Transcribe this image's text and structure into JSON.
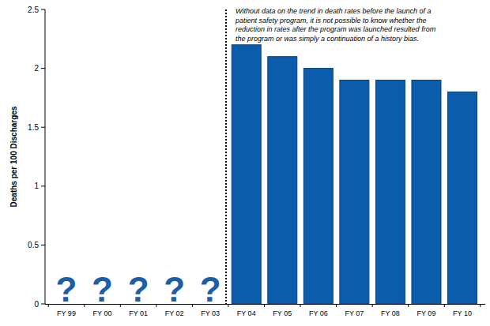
{
  "chart_data": {
    "type": "bar",
    "y_label": "Deaths per 100 Discharges",
    "categories": [
      "FY 99",
      "FY 00",
      "FY 01",
      "FY 02",
      "FY 03",
      "FY 04",
      "FY 05",
      "FY 06",
      "FY 07",
      "FY 08",
      "FY 09",
      "FY 10"
    ],
    "values": [
      null,
      null,
      null,
      null,
      null,
      2.2,
      2.1,
      2.0,
      1.9,
      1.9,
      1.9,
      1.8
    ],
    "color": "#0b5cab",
    "missing_label": "?",
    "annotation": "Without data on the trend in death rates before the launch of a\npatient safety program, it is not possible to know whether the\nreduction in rates after the program was launched resulted from\nthe program or was simply a continuation of a history bias.",
    "ylim": [
      0,
      2.5
    ],
    "yticks": [
      0,
      0.5,
      1,
      1.5,
      2,
      2.5
    ],
    "grid": false
  }
}
